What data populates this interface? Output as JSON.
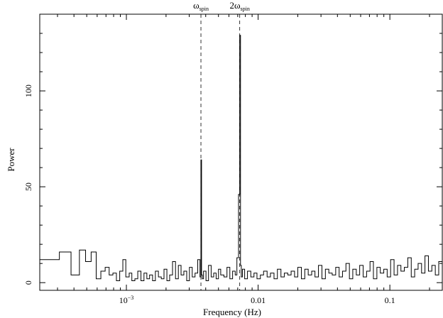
{
  "chart_data": {
    "type": "line",
    "title": "",
    "xlabel": "Frequency (Hz)",
    "ylabel": "Power",
    "x_scale": "log",
    "xlim": [
      0.00022,
      0.25
    ],
    "ylim": [
      -4,
      140
    ],
    "x_ticks": [
      {
        "value": 0.001,
        "label_base": "10",
        "label_exp": "−3"
      },
      {
        "value": 0.01,
        "label": "0.01"
      },
      {
        "value": 0.1,
        "label": "0.1"
      }
    ],
    "y_ticks": [
      {
        "value": 0,
        "label": "0"
      },
      {
        "value": 50,
        "label": "50"
      },
      {
        "value": 100,
        "label": "100"
      }
    ],
    "grid": false,
    "line_style": "step",
    "series": [
      {
        "x": [
          0.00022,
          0.00031,
          0.00038,
          0.00044,
          0.00049,
          0.00054,
          0.00059,
          0.00064,
          0.00069,
          0.00074,
          0.00079,
          0.00084,
          0.00089,
          0.00094,
          0.00099,
          0.00105,
          0.0011,
          0.00116,
          0.00122,
          0.00129,
          0.00136,
          0.00143,
          0.0015,
          0.00158,
          0.00166,
          0.00175,
          0.00184,
          0.00193,
          0.00203,
          0.00213,
          0.00224,
          0.00236,
          0.00248,
          0.0026,
          0.00273,
          0.00287,
          0.00301,
          0.00316,
          0.00332,
          0.00348,
          0.00362,
          0.00368,
          0.00372,
          0.00377,
          0.00385,
          0.00402,
          0.0042,
          0.0044,
          0.0046,
          0.0048,
          0.005,
          0.0052,
          0.0055,
          0.0058,
          0.0061,
          0.0064,
          0.0067,
          0.0069,
          0.0071,
          0.00725,
          0.00735,
          0.00745,
          0.0076,
          0.0079,
          0.0083,
          0.0088,
          0.0093,
          0.0098,
          0.0104,
          0.011,
          0.0117,
          0.0124,
          0.0132,
          0.014,
          0.0149,
          0.0158,
          0.0168,
          0.0178,
          0.0189,
          0.02,
          0.0213,
          0.0226,
          0.024,
          0.0255,
          0.027,
          0.0287,
          0.0305,
          0.0324,
          0.0344,
          0.0365,
          0.0388,
          0.0412,
          0.0437,
          0.0464,
          0.0493,
          0.0523,
          0.0556,
          0.059,
          0.0627,
          0.0666,
          0.0707,
          0.075,
          0.0797,
          0.0846,
          0.0899,
          0.0954,
          0.1013,
          0.1076,
          0.1143,
          0.1213,
          0.1288,
          0.1368,
          0.1453,
          0.1543,
          0.1638,
          0.174,
          0.1847,
          0.1962,
          0.2083,
          0.2212,
          0.2349,
          0.25
        ],
        "y": [
          12,
          16,
          4,
          17,
          11,
          16,
          2,
          6,
          8,
          4,
          5,
          1,
          6,
          12,
          3,
          5,
          1,
          2,
          6,
          1,
          5,
          2,
          4,
          1,
          6,
          3,
          2,
          7,
          1,
          4,
          11,
          2,
          9,
          4,
          6,
          1,
          8,
          3,
          5,
          12,
          3,
          64,
          4,
          2,
          6,
          1,
          9,
          3,
          5,
          2,
          7,
          4,
          3,
          8,
          2,
          6,
          4,
          13,
          46,
          129,
          9,
          3,
          7,
          2,
          6,
          3,
          5,
          2,
          4,
          6,
          3,
          5,
          2,
          7,
          3,
          5,
          4,
          6,
          3,
          8,
          2,
          7,
          4,
          6,
          3,
          9,
          2,
          7,
          5,
          4,
          8,
          3,
          6,
          10,
          2,
          7,
          4,
          9,
          3,
          6,
          11,
          2,
          8,
          5,
          7,
          3,
          12,
          4,
          9,
          6,
          8,
          13,
          3,
          7,
          10,
          5,
          14,
          6,
          9,
          4,
          11,
          7
        ]
      }
    ],
    "annotations": [
      {
        "x": 0.00368,
        "base": "ω",
        "sub": "spin"
      },
      {
        "x": 0.00725,
        "base": "2ω",
        "sub": "spin"
      }
    ]
  }
}
